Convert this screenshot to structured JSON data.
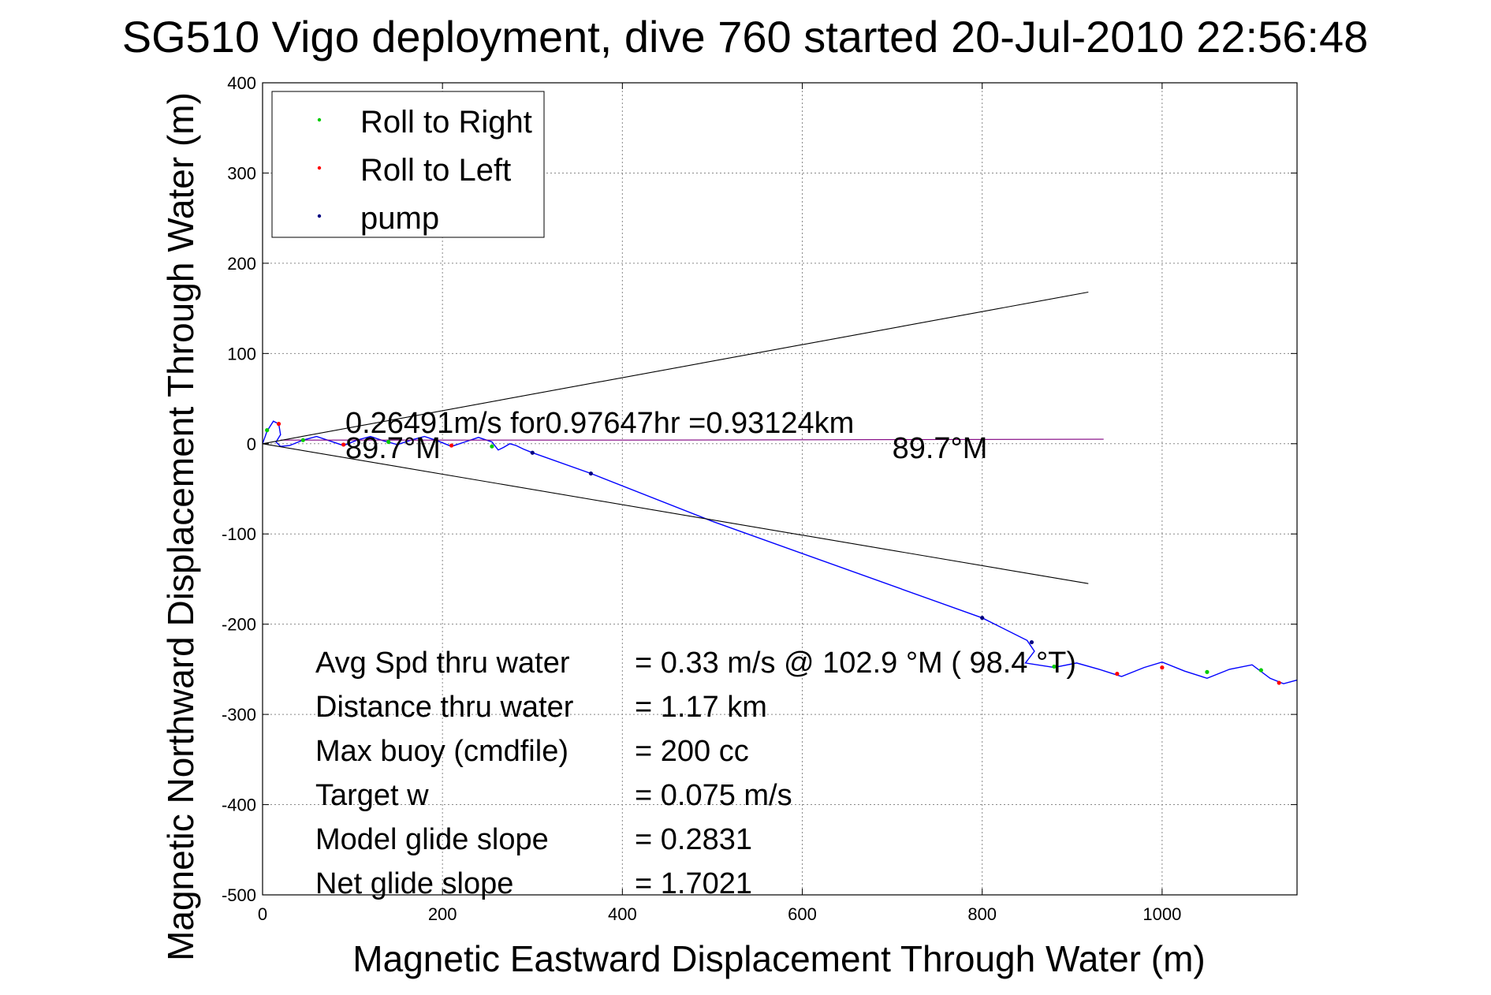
{
  "chart_data": {
    "type": "line",
    "title": "SG510 Vigo deployment, dive 760 started 20-Jul-2010 22:56:48",
    "xlabel": "Magnetic Eastward Displacement Through Water (m)",
    "ylabel": "Magnetic Northward Displacement Through Water (m)",
    "xlim": [
      0,
      1150
    ],
    "ylim": [
      -500,
      400
    ],
    "xticks": [
      0,
      200,
      400,
      600,
      800,
      1000
    ],
    "yticks": [
      400,
      300,
      200,
      100,
      0,
      -100,
      -200,
      -300,
      -400,
      -500
    ],
    "grid": true,
    "legend_position": "top-left",
    "legend": [
      {
        "label": "Roll to Right",
        "color": "#00cc00"
      },
      {
        "label": "Roll to Left",
        "color": "#ff0000"
      },
      {
        "label": "pump",
        "color": "#000080"
      }
    ],
    "series": [
      {
        "color": "#0000ff",
        "points": [
          [
            0,
            0
          ],
          [
            5,
            14
          ],
          [
            12,
            25
          ],
          [
            18,
            22
          ],
          [
            20,
            10
          ],
          [
            15,
            2
          ],
          [
            20,
            -3
          ],
          [
            30,
            -2
          ],
          [
            45,
            4
          ],
          [
            60,
            8
          ],
          [
            75,
            3
          ],
          [
            90,
            -2
          ],
          [
            105,
            4
          ],
          [
            120,
            8
          ],
          [
            135,
            3
          ],
          [
            150,
            -1
          ],
          [
            165,
            4
          ],
          [
            180,
            8
          ],
          [
            195,
            3
          ],
          [
            210,
            -3
          ],
          [
            225,
            2
          ],
          [
            240,
            7
          ],
          [
            255,
            2
          ],
          [
            262,
            -7
          ],
          [
            268,
            -4
          ],
          [
            275,
            0
          ],
          [
            282,
            -2
          ],
          [
            290,
            -6
          ],
          [
            300,
            -10
          ],
          [
            365,
            -33
          ],
          [
            500,
            -86
          ],
          [
            800,
            -193
          ],
          [
            850,
            -218
          ],
          [
            858,
            -230
          ],
          [
            848,
            -243
          ],
          [
            880,
            -248
          ],
          [
            905,
            -243
          ],
          [
            930,
            -250
          ],
          [
            955,
            -258
          ],
          [
            980,
            -248
          ],
          [
            1000,
            -242
          ],
          [
            1025,
            -252
          ],
          [
            1050,
            -260
          ],
          [
            1075,
            -250
          ],
          [
            1100,
            -245
          ],
          [
            1120,
            -260
          ],
          [
            1135,
            -266
          ],
          [
            1150,
            -262
          ]
        ]
      },
      {
        "color": "#800080",
        "points": [
          [
            20,
            4
          ],
          [
            400,
            4
          ],
          [
            935,
            5
          ]
        ]
      },
      {
        "color": "#000000",
        "points": [
          [
            0,
            0
          ],
          [
            918,
            168
          ]
        ]
      },
      {
        "color": "#000000",
        "points": [
          [
            0,
            0
          ],
          [
            918,
            -155
          ]
        ]
      }
    ],
    "markers_green": [
      [
        5,
        15
      ],
      [
        45,
        4
      ],
      [
        140,
        2
      ],
      [
        255,
        -3
      ],
      [
        880,
        -247
      ],
      [
        1050,
        -253
      ],
      [
        1110,
        -251
      ]
    ],
    "markers_red": [
      [
        18,
        22
      ],
      [
        90,
        -1
      ],
      [
        210,
        -2
      ],
      [
        950,
        -255
      ],
      [
        1000,
        -248
      ],
      [
        1130,
        -265
      ]
    ],
    "markers_navy": [
      [
        300,
        -10
      ],
      [
        365,
        -33
      ],
      [
        800,
        -193
      ],
      [
        855,
        -220
      ]
    ],
    "annotations": [
      {
        "text": "0.26491m/s for0.97647hr =0.93124km",
        "x": 92,
        "y": 12
      },
      {
        "text": "89.7°M",
        "x": 92,
        "y": -16
      },
      {
        "text": "89.7°M",
        "x": 700,
        "y": -16
      }
    ],
    "stats": [
      {
        "label": "Avg Spd thru water",
        "value": "=  0.33 m/s @ 102.9 °M ( 98.4 °T)"
      },
      {
        "label": "Distance thru water",
        "value": "=  1.17 km"
      },
      {
        "label": "Max buoy (cmdfile)",
        "value": "= 200 cc"
      },
      {
        "label": "Target w",
        "value": "= 0.075 m/s"
      },
      {
        "label": "Model glide slope",
        "value": "= 0.2831"
      },
      {
        "label": "Net glide slope",
        "value": "= 1.7021"
      }
    ]
  }
}
